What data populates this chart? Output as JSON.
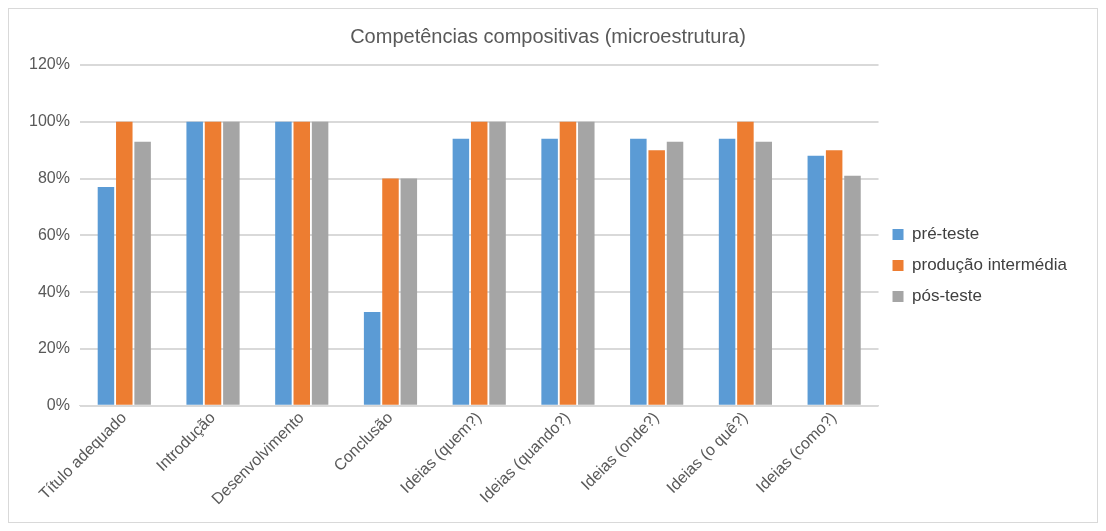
{
  "chart_data": {
    "type": "bar",
    "title": "Competências compositivas (microestrutura)",
    "categories": [
      "Título adequado",
      "Introdução",
      "Desenvolvimento",
      "Conclusão",
      "Ideias (quem?)",
      "Ideias (quando?)",
      "Ideias (onde?)",
      "Ideias (o quê?)",
      "Ideias (como?)"
    ],
    "series": [
      {
        "name": "pré-teste",
        "color": "#5b9bd5",
        "values": [
          77,
          100,
          100,
          33,
          94,
          94,
          94,
          94,
          88
        ]
      },
      {
        "name": "produção intermédia",
        "color": "#ed7d31",
        "values": [
          100,
          100,
          100,
          80,
          100,
          100,
          90,
          100,
          90
        ]
      },
      {
        "name": "pós-teste",
        "color": "#a5a5a5",
        "values": [
          93,
          100,
          100,
          80,
          100,
          100,
          93,
          93,
          81
        ]
      }
    ],
    "ylim": [
      0,
      120
    ],
    "yticks": [
      {
        "value": 0,
        "label": "0%"
      },
      {
        "value": 20,
        "label": "20%"
      },
      {
        "value": 40,
        "label": "40%"
      },
      {
        "value": 60,
        "label": "60%"
      },
      {
        "value": 80,
        "label": "80%"
      },
      {
        "value": 100,
        "label": "100%"
      },
      {
        "value": 120,
        "label": "120%"
      }
    ],
    "grid": "y",
    "legend": "right"
  }
}
